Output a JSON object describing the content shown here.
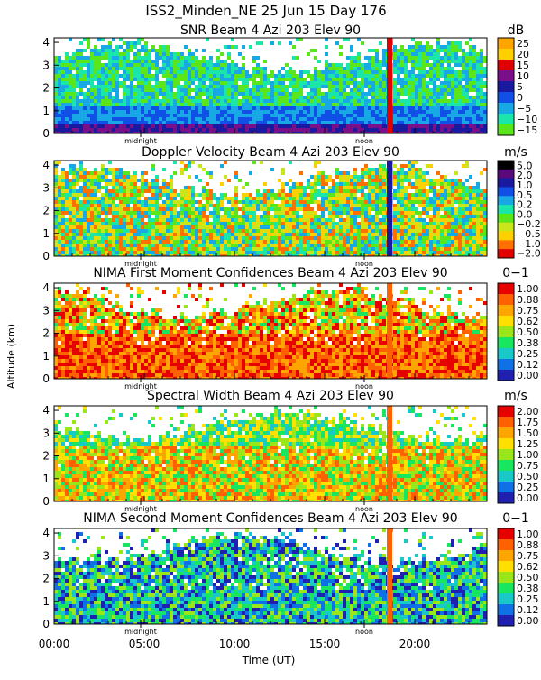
{
  "header": {
    "title": "ISS2_Minden_NE   25 Jun 15 Day 176"
  },
  "axes": {
    "ylabel": "Altitude (km)",
    "xlabel": "Time (UT)",
    "x_ticks": [
      {
        "value": 0,
        "label": "00:00"
      },
      {
        "value": 5,
        "label": "05:00"
      },
      {
        "value": 10,
        "label": "10:00"
      },
      {
        "value": 15,
        "label": "15:00"
      },
      {
        "value": 20,
        "label": "20:00"
      }
    ],
    "y_ticks": [
      "0",
      "1",
      "2",
      "3",
      "4"
    ],
    "markers": [
      {
        "label": "midnight",
        "time": 4.8
      },
      {
        "label": "noon",
        "time": 17.2
      }
    ]
  },
  "chart_data": [
    {
      "type": "heatmap",
      "title": "SNR Beam 4 Azi 203 Elev 90",
      "units": "dB",
      "xlim": [
        0,
        24
      ],
      "ylim": [
        0,
        4.2
      ],
      "colorbar_labels": [
        "25",
        "20",
        "15",
        "10",
        "5",
        "0",
        "−5",
        "−10",
        "−15"
      ],
      "colors": [
        "#ffa500",
        "#ffd000",
        "#e00000",
        "#7a0f8a",
        "#1a1aa0",
        "#1050e6",
        "#19a8e6",
        "#19e6a8",
        "#5ae619"
      ]
    },
    {
      "type": "heatmap",
      "title": "Doppler Velocity Beam 4 Azi 203 Elev 90",
      "units": "m/s",
      "xlim": [
        0,
        24
      ],
      "ylim": [
        0,
        4.2
      ],
      "colorbar_labels": [
        "5.0",
        "2.0",
        "1.0",
        "0.5",
        "0.2",
        "0.0",
        "−0.2",
        "−0.5",
        "−1.0",
        "−2.0"
      ],
      "colors": [
        "#000000",
        "#5a0a7a",
        "#1a1aa0",
        "#1050e6",
        "#19a8e6",
        "#19e6a8",
        "#5ae619",
        "#c8e61a",
        "#ffd000",
        "#ff7000",
        "#e00000"
      ]
    },
    {
      "type": "heatmap",
      "title": "NIMA First Moment Confidences Beam 4 Azi 203 Elev 90",
      "units": "0−1",
      "xlim": [
        0,
        24
      ],
      "ylim": [
        0,
        4.2
      ],
      "colorbar_labels": [
        "1.00",
        "0.88",
        "0.75",
        "0.62",
        "0.50",
        "0.38",
        "0.25",
        "0.12",
        "0.00"
      ],
      "colors": [
        "#e60000",
        "#ff6000",
        "#ffa500",
        "#ffe000",
        "#9ae619",
        "#19e660",
        "#19c8c8",
        "#1070e6",
        "#2020b0"
      ]
    },
    {
      "type": "heatmap",
      "title": "Spectral Width Beam 4 Azi 203 Elev 90",
      "units": "m/s",
      "xlim": [
        0,
        24
      ],
      "ylim": [
        0,
        4.2
      ],
      "colorbar_labels": [
        "2.00",
        "1.75",
        "1.50",
        "1.25",
        "1.00",
        "0.75",
        "0.50",
        "0.25",
        "0.00"
      ],
      "colors": [
        "#e60000",
        "#ff6000",
        "#ffa500",
        "#ffe000",
        "#9ae619",
        "#19e660",
        "#19c8c8",
        "#1070e6",
        "#2020b0"
      ]
    },
    {
      "type": "heatmap",
      "title": "NIMA Second Moment Confidences Beam 4 Azi 203 Elev 90",
      "units": "0−1",
      "xlim": [
        0,
        24
      ],
      "ylim": [
        0,
        4.2
      ],
      "colorbar_labels": [
        "1.00",
        "0.88",
        "0.75",
        "0.62",
        "0.50",
        "0.38",
        "0.25",
        "0.12",
        "0.00"
      ],
      "colors": [
        "#e60000",
        "#ff6000",
        "#ffa500",
        "#ffe000",
        "#9ae619",
        "#19e660",
        "#19c8c8",
        "#1070e6",
        "#2020b0"
      ]
    }
  ]
}
